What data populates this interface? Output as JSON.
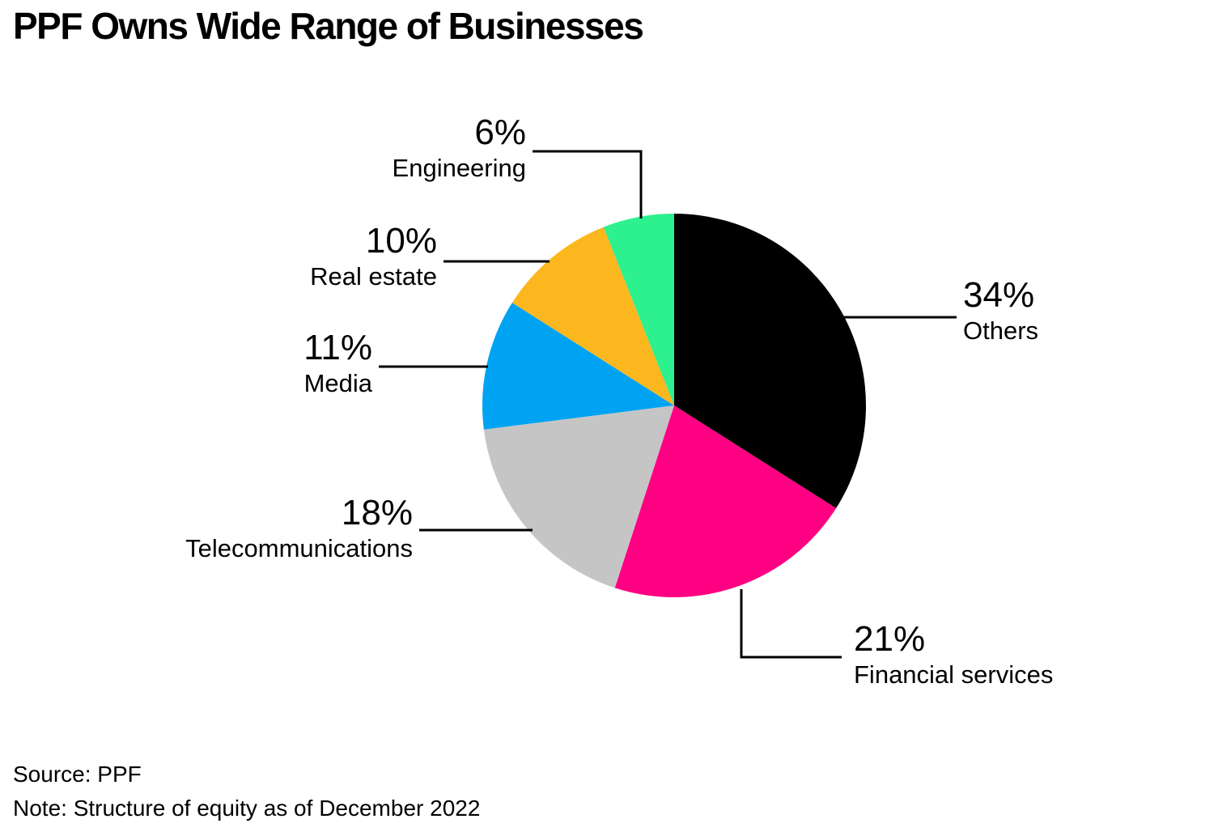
{
  "title": "PPF Owns Wide Range of Businesses",
  "footer": {
    "source_line": "Source: PPF",
    "note_line": "Note: Structure of equity as of December 2022"
  },
  "chart_data": {
    "type": "pie",
    "title": "PPF Owns Wide Range of Businesses",
    "unit": "%",
    "start_angle_deg_from_12_oclock": 0,
    "direction": "clockwise",
    "legend_position": "callout-labels",
    "background_color": "#ffffff",
    "leader_line_color": "#000000",
    "slices": [
      {
        "label": "Others",
        "value": 34,
        "pct_label": "34%",
        "color": "#000000"
      },
      {
        "label": "Financial services",
        "value": 21,
        "pct_label": "21%",
        "color": "#FF0082"
      },
      {
        "label": "Telecommunications",
        "value": 18,
        "pct_label": "18%",
        "color": "#C5C5C5"
      },
      {
        "label": "Media",
        "value": 11,
        "pct_label": "11%",
        "color": "#00A3F2"
      },
      {
        "label": "Real estate",
        "value": 10,
        "pct_label": "10%",
        "color": "#FDB71E"
      },
      {
        "label": "Engineering",
        "value": 6,
        "pct_label": "6%",
        "color": "#2DF08E"
      }
    ]
  }
}
